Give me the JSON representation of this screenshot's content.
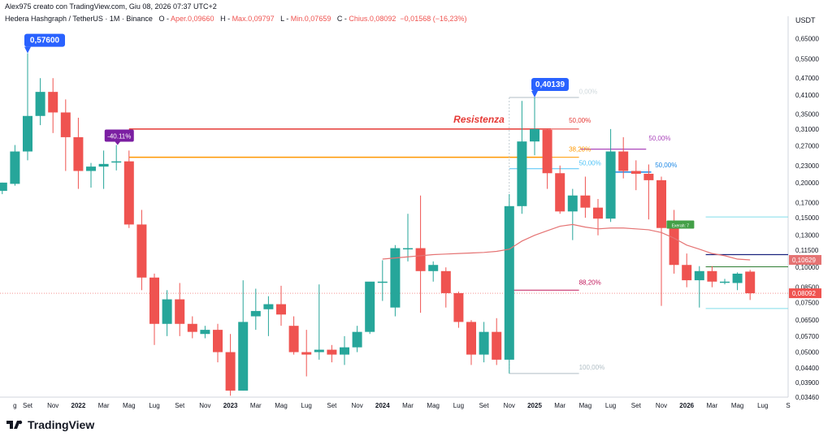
{
  "header": {
    "created": "Alex975 creato con TradingView.com, Giu 08, 2026 07:37 UTC+2",
    "symbol": "Hedera Hashgraph / TetherUS · 1M · Binance",
    "o_label": "O",
    "o_value": "Aper.0,09660",
    "h_label": "H",
    "h_value": "Max.0,09797",
    "l_label": "L",
    "l_value": "Min.0,07659",
    "c_label": "C",
    "c_value": "Chius.0,08092",
    "change": "−0,01568 (−16,23%)"
  },
  "footer": {
    "brand": "TradingView"
  },
  "colors": {
    "up": "#26a69a",
    "down": "#ef5350",
    "resistance": "#e53935",
    "fib382": "#ff9800",
    "sma": "#e57373",
    "callout": "#2962ff",
    "purple": "#7b1fa2",
    "green_tag": "#43a047"
  },
  "chart_data": {
    "type": "candlestick",
    "title": "Hedera Hashgraph / TetherUS · 1M · Binance",
    "y_unit": "USDT",
    "log_scale": true,
    "ylim": [
      0.0346,
      0.72
    ],
    "y_ticks": [
      "0,65000",
      "0,55000",
      "0,47000",
      "0,41000",
      "0,35000",
      "0,31000",
      "0,27000",
      "0,23000",
      "0,20000",
      "0,17000",
      "0,15000",
      "0,13000",
      "0,11500",
      "0,10000",
      "0,08500",
      "0,07500",
      "0,06500",
      "0,05700",
      "0,05000",
      "0,04400",
      "0,03900",
      "0,03460"
    ],
    "x_ticks": [
      {
        "label": "g",
        "i": -1
      },
      {
        "label": "Set",
        "i": 0
      },
      {
        "label": "Nov",
        "i": 2
      },
      {
        "label": "2022",
        "i": 4
      },
      {
        "label": "Mar",
        "i": 6
      },
      {
        "label": "Mag",
        "i": 8
      },
      {
        "label": "Lug",
        "i": 10
      },
      {
        "label": "Set",
        "i": 12
      },
      {
        "label": "Nov",
        "i": 14
      },
      {
        "label": "2023",
        "i": 16
      },
      {
        "label": "Mar",
        "i": 18
      },
      {
        "label": "Mag",
        "i": 20
      },
      {
        "label": "Lug",
        "i": 22
      },
      {
        "label": "Set",
        "i": 24
      },
      {
        "label": "Nov",
        "i": 26
      },
      {
        "label": "2024",
        "i": 28
      },
      {
        "label": "Mar",
        "i": 30
      },
      {
        "label": "Mag",
        "i": 32
      },
      {
        "label": "Lug",
        "i": 34
      },
      {
        "label": "Set",
        "i": 36
      },
      {
        "label": "Nov",
        "i": 38
      },
      {
        "label": "2025",
        "i": 40
      },
      {
        "label": "Mar",
        "i": 42
      },
      {
        "label": "Mag",
        "i": 44
      },
      {
        "label": "Lug",
        "i": 46
      },
      {
        "label": "Set",
        "i": 48
      },
      {
        "label": "Nov",
        "i": 50
      },
      {
        "label": "2026",
        "i": 52
      },
      {
        "label": "Mar",
        "i": 54
      },
      {
        "label": "Mag",
        "i": 56
      },
      {
        "label": "Lug",
        "i": 58
      },
      {
        "label": "S",
        "i": 60
      }
    ],
    "candles": [
      {
        "i": -2,
        "o": 0.187,
        "h": 0.2,
        "l": 0.182,
        "c": 0.2
      },
      {
        "i": -1,
        "o": 0.198,
        "h": 0.272,
        "l": 0.195,
        "c": 0.258
      },
      {
        "i": 0,
        "o": 0.258,
        "h": 0.576,
        "l": 0.24,
        "c": 0.345
      },
      {
        "i": 1,
        "o": 0.345,
        "h": 0.47,
        "l": 0.32,
        "c": 0.42
      },
      {
        "i": 2,
        "o": 0.42,
        "h": 0.47,
        "l": 0.3,
        "c": 0.355
      },
      {
        "i": 3,
        "o": 0.355,
        "h": 0.395,
        "l": 0.22,
        "c": 0.29
      },
      {
        "i": 4,
        "o": 0.29,
        "h": 0.34,
        "l": 0.19,
        "c": 0.22
      },
      {
        "i": 5,
        "o": 0.22,
        "h": 0.235,
        "l": 0.192,
        "c": 0.228
      },
      {
        "i": 6,
        "o": 0.228,
        "h": 0.26,
        "l": 0.19,
        "c": 0.233
      },
      {
        "i": 7,
        "o": 0.238,
        "h": 0.272,
        "l": 0.221,
        "c": 0.238
      },
      {
        "i": 8,
        "o": 0.238,
        "h": 0.26,
        "l": 0.138,
        "c": 0.142
      },
      {
        "i": 9,
        "o": 0.142,
        "h": 0.16,
        "l": 0.083,
        "c": 0.092
      },
      {
        "i": 10,
        "o": 0.092,
        "h": 0.095,
        "l": 0.053,
        "c": 0.063
      },
      {
        "i": 11,
        "o": 0.063,
        "h": 0.083,
        "l": 0.057,
        "c": 0.077
      },
      {
        "i": 12,
        "o": 0.077,
        "h": 0.088,
        "l": 0.057,
        "c": 0.063
      },
      {
        "i": 13,
        "o": 0.063,
        "h": 0.067,
        "l": 0.056,
        "c": 0.059
      },
      {
        "i": 14,
        "o": 0.058,
        "h": 0.062,
        "l": 0.056,
        "c": 0.06
      },
      {
        "i": 15,
        "o": 0.06,
        "h": 0.063,
        "l": 0.046,
        "c": 0.05
      },
      {
        "i": 16,
        "o": 0.05,
        "h": 0.058,
        "l": 0.035,
        "c": 0.0365
      },
      {
        "i": 17,
        "o": 0.0365,
        "h": 0.09,
        "l": 0.0365,
        "c": 0.064
      },
      {
        "i": 18,
        "o": 0.067,
        "h": 0.084,
        "l": 0.06,
        "c": 0.07
      },
      {
        "i": 19,
        "o": 0.071,
        "h": 0.079,
        "l": 0.057,
        "c": 0.074
      },
      {
        "i": 20,
        "o": 0.074,
        "h": 0.086,
        "l": 0.062,
        "c": 0.068
      },
      {
        "i": 21,
        "o": 0.062,
        "h": 0.067,
        "l": 0.049,
        "c": 0.05
      },
      {
        "i": 22,
        "o": 0.05,
        "h": 0.06,
        "l": 0.041,
        "c": 0.049
      },
      {
        "i": 23,
        "o": 0.05,
        "h": 0.087,
        "l": 0.047,
        "c": 0.051
      },
      {
        "i": 24,
        "o": 0.051,
        "h": 0.053,
        "l": 0.046,
        "c": 0.049
      },
      {
        "i": 25,
        "o": 0.049,
        "h": 0.057,
        "l": 0.045,
        "c": 0.052
      },
      {
        "i": 26,
        "o": 0.052,
        "h": 0.062,
        "l": 0.05,
        "c": 0.059
      },
      {
        "i": 27,
        "o": 0.059,
        "h": 0.086,
        "l": 0.058,
        "c": 0.089
      },
      {
        "i": 28,
        "o": 0.089,
        "h": 0.106,
        "l": 0.076,
        "c": 0.089
      },
      {
        "i": 29,
        "o": 0.072,
        "h": 0.12,
        "l": 0.067,
        "c": 0.117
      },
      {
        "i": 30,
        "o": 0.117,
        "h": 0.155,
        "l": 0.105,
        "c": 0.117
      },
      {
        "i": 31,
        "o": 0.117,
        "h": 0.18,
        "l": 0.069,
        "c": 0.097
      },
      {
        "i": 32,
        "o": 0.097,
        "h": 0.105,
        "l": 0.089,
        "c": 0.102
      },
      {
        "i": 33,
        "o": 0.097,
        "h": 0.1,
        "l": 0.072,
        "c": 0.081
      },
      {
        "i": 34,
        "o": 0.081,
        "h": 0.082,
        "l": 0.061,
        "c": 0.064
      },
      {
        "i": 35,
        "o": 0.064,
        "h": 0.065,
        "l": 0.045,
        "c": 0.049
      },
      {
        "i": 36,
        "o": 0.049,
        "h": 0.064,
        "l": 0.046,
        "c": 0.059
      },
      {
        "i": 37,
        "o": 0.059,
        "h": 0.066,
        "l": 0.045,
        "c": 0.047
      },
      {
        "i": 38,
        "o": 0.047,
        "h": 0.182,
        "l": 0.042,
        "c": 0.165
      },
      {
        "i": 39,
        "o": 0.165,
        "h": 0.39,
        "l": 0.155,
        "c": 0.28
      },
      {
        "i": 40,
        "o": 0.28,
        "h": 0.40139,
        "l": 0.25,
        "c": 0.31
      },
      {
        "i": 41,
        "o": 0.308,
        "h": 0.31,
        "l": 0.19,
        "c": 0.216
      },
      {
        "i": 42,
        "o": 0.216,
        "h": 0.23,
        "l": 0.155,
        "c": 0.158
      },
      {
        "i": 43,
        "o": 0.158,
        "h": 0.19,
        "l": 0.125,
        "c": 0.18
      },
      {
        "i": 44,
        "o": 0.18,
        "h": 0.21,
        "l": 0.15,
        "c": 0.163
      },
      {
        "i": 45,
        "o": 0.163,
        "h": 0.175,
        "l": 0.13,
        "c": 0.149
      },
      {
        "i": 46,
        "o": 0.149,
        "h": 0.31,
        "l": 0.145,
        "c": 0.258
      },
      {
        "i": 47,
        "o": 0.258,
        "h": 0.29,
        "l": 0.207,
        "c": 0.22
      },
      {
        "i": 48,
        "o": 0.22,
        "h": 0.24,
        "l": 0.188,
        "c": 0.215
      },
      {
        "i": 49,
        "o": 0.215,
        "h": 0.232,
        "l": 0.148,
        "c": 0.204
      },
      {
        "i": 50,
        "o": 0.204,
        "h": 0.21,
        "l": 0.073,
        "c": 0.138
      },
      {
        "i": 51,
        "o": 0.14,
        "h": 0.16,
        "l": 0.095,
        "c": 0.102
      },
      {
        "i": 52,
        "o": 0.102,
        "h": 0.112,
        "l": 0.085,
        "c": 0.09
      },
      {
        "i": 53,
        "o": 0.09,
        "h": 0.101,
        "l": 0.072,
        "c": 0.097
      },
      {
        "i": 54,
        "o": 0.097,
        "h": 0.101,
        "l": 0.085,
        "c": 0.089
      },
      {
        "i": 55,
        "o": 0.089,
        "h": 0.091,
        "l": 0.087,
        "c": 0.089
      },
      {
        "i": 56,
        "o": 0.088,
        "h": 0.096,
        "l": 0.083,
        "c": 0.095
      },
      {
        "i": 57,
        "o": 0.0966,
        "h": 0.09797,
        "l": 0.07659,
        "c": 0.08092
      }
    ],
    "sma": [
      [
        28,
        0.107
      ],
      [
        29,
        0.108
      ],
      [
        30,
        0.109
      ],
      [
        31,
        0.11
      ],
      [
        32,
        0.111
      ],
      [
        33,
        0.1115
      ],
      [
        34,
        0.112
      ],
      [
        35,
        0.1125
      ],
      [
        36,
        0.113
      ],
      [
        37,
        0.114
      ],
      [
        38,
        0.116
      ],
      [
        39,
        0.124
      ],
      [
        40,
        0.13
      ],
      [
        41,
        0.135
      ],
      [
        42,
        0.14
      ],
      [
        43,
        0.142
      ],
      [
        44,
        0.139
      ],
      [
        45,
        0.137
      ],
      [
        46,
        0.138
      ],
      [
        47,
        0.138
      ],
      [
        48,
        0.137
      ],
      [
        49,
        0.136
      ],
      [
        50,
        0.133
      ],
      [
        51,
        0.127
      ],
      [
        52,
        0.12
      ],
      [
        53,
        0.116
      ],
      [
        54,
        0.112
      ],
      [
        55,
        0.11
      ],
      [
        56,
        0.107
      ],
      [
        57,
        0.10629
      ]
    ],
    "lines": [
      {
        "name": "resistance",
        "y": 0.31,
        "i0": 8,
        "i1": 41.3,
        "color": "#e53935",
        "width": 1.5
      },
      {
        "name": "fib-382-old",
        "y": 0.246,
        "i0": 8,
        "i1": 41.3,
        "color": "#ff9800",
        "width": 1.5
      },
      {
        "name": "fib-top-2025",
        "y": 0.40139,
        "i0": 38,
        "i1": 43.5,
        "color": "#b0bec5",
        "width": 1
      },
      {
        "name": "fib-50-2025",
        "y": 0.31,
        "i0": 41.3,
        "i1": 43.5,
        "color": "#e53935",
        "width": 1
      },
      {
        "name": "fib-382-2025",
        "y": 0.246,
        "i0": 41.3,
        "i1": 43.5,
        "color": "#ff9800",
        "width": 1
      },
      {
        "name": "fib-50-blue-2025",
        "y": 0.224,
        "i0": 38,
        "i1": 43.5,
        "color": "#4fc3f7",
        "width": 1
      },
      {
        "name": "fib-882-2025",
        "y": 0.083,
        "i0": 38,
        "i1": 43.5,
        "color": "#c2185b",
        "width": 1
      },
      {
        "name": "fib-100-2025",
        "y": 0.042,
        "i0": 38,
        "i1": 43.5,
        "color": "#b0bec5",
        "width": 1
      },
      {
        "name": "fib-50-purple",
        "y": 0.263,
        "i0": 43.6,
        "i1": 48.8,
        "color": "#ab47bc",
        "width": 1.2
      },
      {
        "name": "fib-50-blue",
        "y": 0.218,
        "i0": 46.3,
        "i1": 49.2,
        "color": "#1e88e5",
        "width": 1.5
      },
      {
        "name": "level-cyan-top",
        "y": 0.151,
        "i0": 53.5,
        "i1": 60,
        "color": "#80deea",
        "width": 1
      },
      {
        "name": "level-navy",
        "y": 0.111,
        "i0": 53.5,
        "i1": 60,
        "color": "#1a237e",
        "width": 1.2
      },
      {
        "name": "level-green",
        "y": 0.1005,
        "i0": 53.5,
        "i1": 60,
        "color": "#2e7d32",
        "width": 1
      },
      {
        "name": "level-cyan-bottom",
        "y": 0.0714,
        "i0": 53.5,
        "i1": 60,
        "color": "#80deea",
        "width": 1
      }
    ],
    "labels": [
      {
        "text": "50,00%",
        "i": 42.7,
        "y": 0.32,
        "color": "#e53935"
      },
      {
        "text": "38,20%",
        "i": 42.7,
        "y": 0.253,
        "color": "#ff9800"
      },
      {
        "text": "50,00%",
        "i": 43.5,
        "y": 0.226,
        "color": "#4fc3f7"
      },
      {
        "text": "88,20%",
        "i": 43.5,
        "y": 0.085,
        "color": "#c2185b"
      },
      {
        "text": "100,00%",
        "i": 43.5,
        "y": 0.0425,
        "color": "#b0bec5"
      },
      {
        "text": "0,00%",
        "i": 43.5,
        "y": 0.405,
        "color": "#cfd8dc"
      },
      {
        "text": "50,00%",
        "i": 49,
        "y": 0.277,
        "color": "#ab47bc"
      },
      {
        "text": "50,00%",
        "i": 49.5,
        "y": 0.222,
        "color": "#1e88e5"
      }
    ],
    "annotations": {
      "resistance_text": "Resistenza",
      "ath_callout": "0,57600",
      "high_2025_callout": "0,40139",
      "drop_tag": "-40.11%",
      "green_tag": "Exerah: 7",
      "last_price": "0,08092",
      "sma_value": "0,10629"
    }
  }
}
